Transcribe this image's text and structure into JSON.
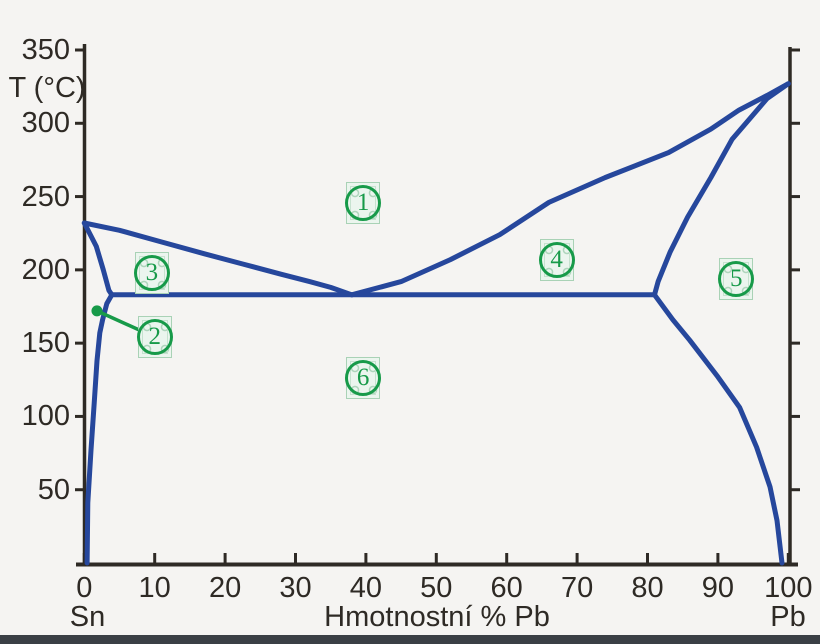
{
  "figure": {
    "background_color": "#f5f4f2",
    "axis_color": "#2e2a25",
    "curve_color": "#26479c",
    "annotation_color": "#179a49",
    "annotation_box_bg": "#ebf5ee",
    "annotation_box_border": "#a9d2b6",
    "bottom_edge_color": "#3a3f45",
    "y_axis": {
      "title": "T (°C)",
      "tick_labels": [
        350,
        300,
        250,
        200,
        150,
        100,
        50
      ]
    },
    "x_axis": {
      "title": "Hmotnostní % Pb",
      "left_label": "Sn",
      "right_label": "Pb",
      "tick_labels": [
        0,
        10,
        20,
        30,
        40,
        50,
        60,
        70,
        80,
        90,
        100
      ]
    }
  },
  "chart_data": {
    "type": "line",
    "title": "",
    "xlabel": "Hmotnostní % Pb",
    "ylabel": "T (°C)",
    "xlim": [
      0,
      100
    ],
    "ylim": [
      0,
      350
    ],
    "x_endpoints": {
      "left": "Sn",
      "right": "Pb"
    },
    "series": [
      {
        "name": "liquidus-sn-side",
        "points": [
          [
            0,
            232
          ],
          [
            5,
            227
          ],
          [
            11,
            219
          ],
          [
            17,
            211
          ],
          [
            22.5,
            204
          ],
          [
            28,
            197
          ],
          [
            32,
            192
          ],
          [
            35,
            188
          ],
          [
            38,
            183
          ]
        ]
      },
      {
        "name": "liquidus-pb-side",
        "points": [
          [
            38,
            183
          ],
          [
            45,
            192
          ],
          [
            52,
            207
          ],
          [
            59,
            224
          ],
          [
            66,
            246
          ],
          [
            74,
            263
          ],
          [
            83,
            280
          ],
          [
            89,
            296
          ],
          [
            93,
            309
          ],
          [
            97,
            319
          ],
          [
            100,
            327
          ]
        ]
      },
      {
        "name": "solidus-sn-side",
        "points": [
          [
            0,
            232
          ],
          [
            1.7,
            216
          ],
          [
            2.7,
            200
          ],
          [
            3.5,
            186
          ],
          [
            3.9,
            183
          ]
        ]
      },
      {
        "name": "solvus-sn-side",
        "points": [
          [
            3.9,
            183
          ],
          [
            3.2,
            177
          ],
          [
            2.6,
            166
          ],
          [
            2.2,
            157
          ],
          [
            1.8,
            138
          ],
          [
            1.4,
            109
          ],
          [
            0.95,
            77
          ],
          [
            0.5,
            41
          ],
          [
            0.4,
            0
          ]
        ]
      },
      {
        "name": "solidus-pb-side",
        "points": [
          [
            100,
            327
          ],
          [
            97,
            317
          ],
          [
            92,
            289
          ],
          [
            89,
            263
          ],
          [
            85.7,
            236
          ],
          [
            83.2,
            212
          ],
          [
            81.5,
            192
          ],
          [
            81,
            183
          ]
        ]
      },
      {
        "name": "solvus-pb-side",
        "points": [
          [
            81,
            183
          ],
          [
            83.6,
            166
          ],
          [
            86,
            152
          ],
          [
            90,
            127
          ],
          [
            93.1,
            106
          ],
          [
            95.5,
            79
          ],
          [
            97.4,
            52
          ],
          [
            98.4,
            29
          ],
          [
            99.1,
            0
          ]
        ]
      },
      {
        "name": "eutectic-isotherm",
        "points": [
          [
            3.9,
            183
          ],
          [
            81,
            183
          ]
        ]
      }
    ],
    "eutectic_point": {
      "x": 38,
      "T": 183
    },
    "annotations": [
      {
        "label": "1",
        "x": 39.6,
        "T": 245.6
      },
      {
        "label": "2",
        "x": 10.0,
        "T": 154.2
      },
      {
        "label": "3",
        "x": 9.6,
        "T": 197.9
      },
      {
        "label": "4",
        "x": 67.1,
        "T": 206.7
      },
      {
        "label": "5",
        "x": 92.6,
        "T": 193.8
      },
      {
        "label": "6",
        "x": 39.6,
        "T": 126.2
      }
    ],
    "callout": {
      "from_label": "2",
      "dot": {
        "x": 1.8,
        "T": 172
      }
    }
  }
}
